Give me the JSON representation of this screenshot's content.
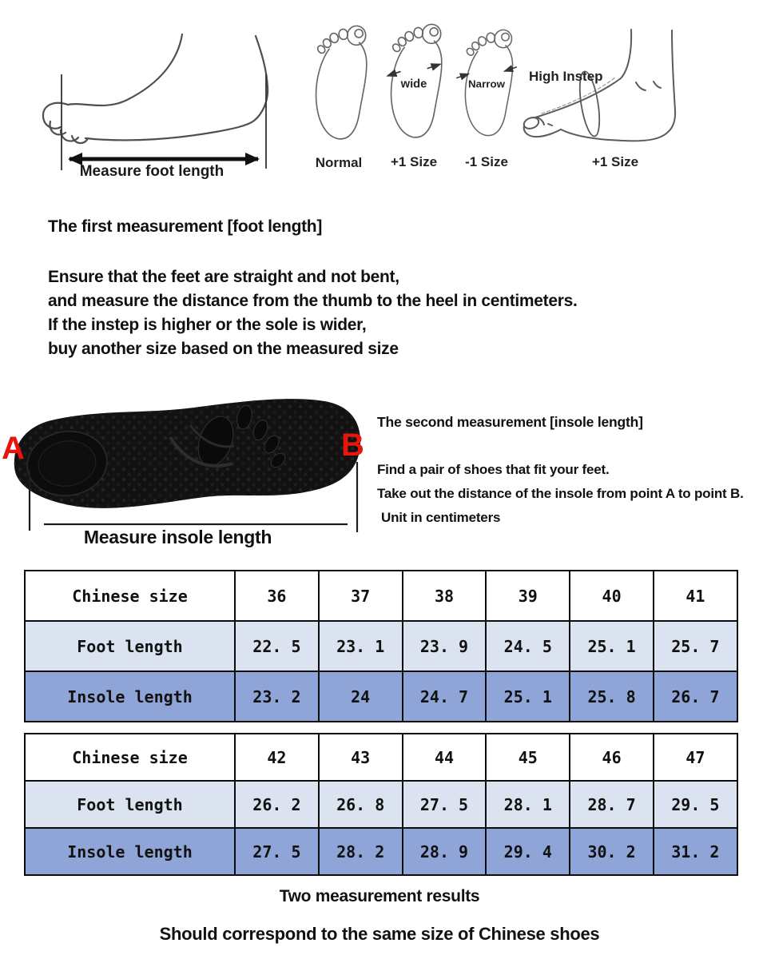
{
  "colors": {
    "background": "#ffffff",
    "table_header_row": "#ffffff",
    "table_light_row": "#dbe3f1",
    "table_dark_row": "#8fa5d8",
    "marker_red": "#e8150d",
    "line_art": "#555555",
    "text": "#111111"
  },
  "top_diagrams": {
    "measure_foot_label": "Measure foot length",
    "soles": [
      {
        "annotation": "",
        "label": "Normal"
      },
      {
        "annotation": "wide",
        "label": "+1 Size"
      },
      {
        "annotation": "Narrow",
        "label": "-1 Size"
      }
    ],
    "high_instep": {
      "annotation": "High Instep",
      "label": "+1 Size"
    }
  },
  "first_measurement": {
    "title": "The first measurement [foot length]",
    "lines": [
      "Ensure that the feet are straight and not bent,",
      "and measure the distance from the thumb to the heel in centimeters.",
      "If the instep is higher or the sole is wider,",
      "buy another size based on the measured size"
    ]
  },
  "second_measurement": {
    "title": "The second measurement [insole length]",
    "lines": [
      "Find a pair of shoes that fit your feet.",
      "Take out the distance of the insole from point A to point B.",
      "Unit in centimeters"
    ],
    "point_a": "A",
    "point_b": "B",
    "caption": "Measure insole length"
  },
  "size_tables": [
    {
      "rows": [
        {
          "type": "header",
          "cells": [
            "Chinese size",
            "36",
            "37",
            "38",
            "39",
            "40",
            "41"
          ]
        },
        {
          "type": "light",
          "cells": [
            "Foot length",
            "22.5",
            "23.1",
            "23.9",
            "24.5",
            "25.1",
            "25.7"
          ]
        },
        {
          "type": "dark",
          "cells": [
            "Insole length",
            "23.2",
            "24",
            "24.7",
            "25.1",
            "25.8",
            "26.7"
          ]
        }
      ]
    },
    {
      "rows": [
        {
          "type": "header",
          "cells": [
            "Chinese size",
            "42",
            "43",
            "44",
            "45",
            "46",
            "47"
          ]
        },
        {
          "type": "light",
          "cells": [
            "Foot length",
            "26.2",
            "26.8",
            "27.5",
            "28.1",
            "28.7",
            "29.5"
          ]
        },
        {
          "type": "dark",
          "cells": [
            "Insole length",
            "27.5",
            "28.2",
            "28.9",
            "29.4",
            "30.2",
            "31.2"
          ]
        }
      ]
    }
  ],
  "footer": {
    "line1": "Two measurement results",
    "line2": "Should correspond to the same size of Chinese shoes"
  }
}
